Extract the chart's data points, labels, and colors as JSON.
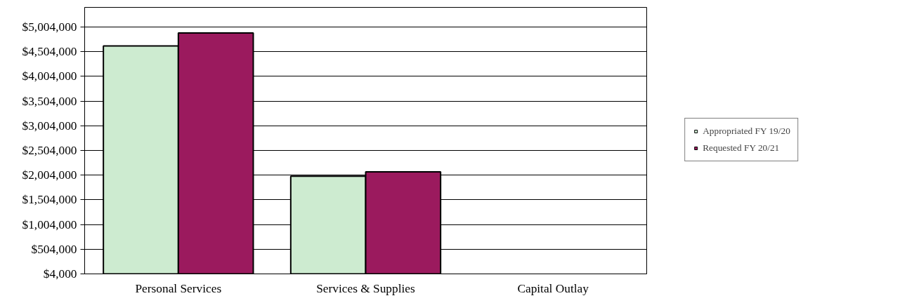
{
  "chart_data": {
    "type": "bar",
    "categories": [
      "Personal Services",
      "Services & Supplies",
      "Capital Outlay"
    ],
    "series": [
      {
        "name": "Appropriated FY 19/20",
        "color": "#cdebd0",
        "values": [
          4620000,
          1980000,
          null
        ]
      },
      {
        "name": "Requested FY 20/21",
        "color": "#9b1a5e",
        "values": [
          4880000,
          2070000,
          null
        ]
      }
    ],
    "ylim": [
      4000,
      5400000
    ],
    "yticks": [
      {
        "value": 4000,
        "label": "$4,000"
      },
      {
        "value": 504000,
        "label": "$504,000"
      },
      {
        "value": 1004000,
        "label": "$1,004,000"
      },
      {
        "value": 1504000,
        "label": "$1,504,000"
      },
      {
        "value": 2004000,
        "label": "$2,004,000"
      },
      {
        "value": 2504000,
        "label": "$2,504,000"
      },
      {
        "value": 3004000,
        "label": "$3,004,000"
      },
      {
        "value": 3504000,
        "label": "$3,504,000"
      },
      {
        "value": 4004000,
        "label": "$4,004,000"
      },
      {
        "value": 4504000,
        "label": "$4,504,000"
      },
      {
        "value": 5004000,
        "label": "$5,004,000"
      }
    ],
    "grid": "y",
    "legend": "right"
  }
}
